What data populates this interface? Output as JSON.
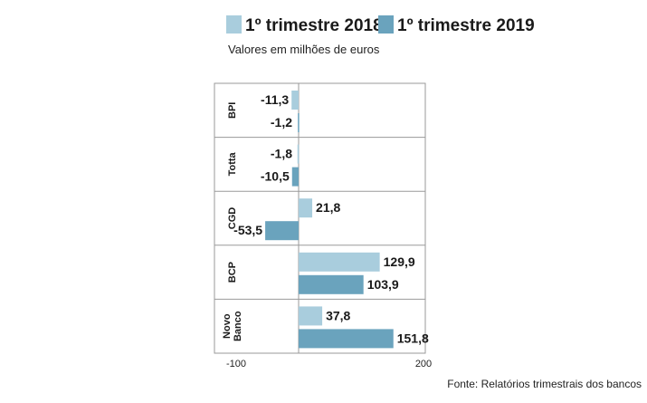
{
  "chart_data": {
    "type": "bar",
    "orientation": "horizontal",
    "subtitle": "Valores em milhões de euros",
    "categories": [
      "BPI",
      "Totta",
      "CGD",
      "BCP",
      "Novo Banco"
    ],
    "category_lines": [
      [
        "BPI"
      ],
      [
        "Totta"
      ],
      [
        "CGD"
      ],
      [
        "BCP"
      ],
      [
        "Novo",
        "Banco"
      ]
    ],
    "series": [
      {
        "name": "1º trimestre 2018",
        "color": "#a9cddd",
        "values": [
          -11.3,
          -1.8,
          21.8,
          129.9,
          37.8
        ],
        "labels": [
          "-11,3",
          "-1,8",
          "21,8",
          "129,9",
          "37,8"
        ]
      },
      {
        "name": "1º trimestre 2019",
        "color": "#6aa3bd",
        "values": [
          -1.2,
          -10.5,
          -53.5,
          103.9,
          151.8
        ],
        "labels": [
          "-1,2",
          "-10,5",
          "-53,5",
          "103,9",
          "151,8"
        ]
      }
    ],
    "xlim": [
      -100,
      200
    ],
    "tick_values": [
      -100,
      200
    ],
    "tick_labels": [
      "-100",
      "200"
    ],
    "legend_position": "top",
    "source": "Fonte: Relatórios trimestrais dos bancos"
  }
}
